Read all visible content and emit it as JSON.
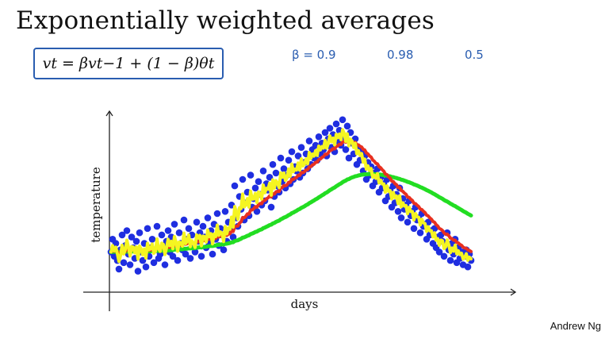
{
  "title": "Exponentially weighted averages",
  "formula": "vt = βvt−1 + (1 − β)θt",
  "annotations": {
    "beta_09": "β = 0.9",
    "beta_098": "0.98",
    "beta_05": "0.5"
  },
  "footer": "Andrew Ng",
  "chart_data": {
    "type": "scatter",
    "title": "",
    "xlabel": "days",
    "ylabel": "temperature",
    "grid": false,
    "series_colors": {
      "points": "#1f2ee0",
      "beta_0.9": "#e83020",
      "beta_0.98": "#22dd22",
      "beta_0.5": "#f5f521"
    },
    "points": {
      "x": [
        0,
        1,
        2,
        3,
        4,
        5,
        6,
        7,
        8,
        9,
        10,
        11,
        12,
        13,
        14,
        15,
        16,
        17,
        18,
        19,
        20,
        21,
        22,
        23,
        24,
        25,
        26,
        27,
        28,
        29,
        30,
        31,
        32,
        33,
        34,
        35,
        36,
        37,
        38,
        39,
        40,
        41,
        42,
        43,
        44,
        45,
        46,
        47,
        48,
        49,
        50,
        51,
        52,
        53,
        54,
        55,
        56,
        57,
        58,
        59,
        60,
        61,
        62,
        63,
        64,
        65,
        66,
        67,
        68,
        69,
        70,
        71,
        72,
        73,
        74,
        75,
        76,
        77,
        78,
        79,
        80,
        81,
        82,
        83,
        84,
        85,
        86,
        87,
        88,
        89,
        90,
        91,
        92,
        93,
        94,
        95,
        96,
        97,
        98,
        99,
        100,
        101,
        102,
        103,
        104,
        105,
        106,
        107,
        108,
        109,
        110,
        111,
        112,
        113,
        114,
        115,
        116,
        117,
        118,
        119,
        120,
        121,
        122,
        123,
        124,
        125,
        126,
        127,
        128,
        129,
        130,
        131,
        132,
        133,
        134,
        135,
        136,
        137,
        138,
        139,
        140,
        141,
        142,
        143,
        144,
        145,
        146,
        147,
        148,
        149,
        150,
        151,
        152,
        153,
        154,
        155,
        156,
        157,
        158,
        159,
        160,
        161,
        162,
        163,
        164,
        165,
        166,
        167,
        168,
        169,
        170,
        171,
        172,
        173,
        174,
        175,
        176,
        177,
        178,
        179,
        180,
        181,
        182,
        183,
        184,
        185,
        186,
        187,
        188,
        189,
        190,
        191,
        192,
        193,
        194,
        195,
        196,
        197,
        198,
        199,
        200,
        201,
        202,
        203,
        204,
        205,
        206,
        207,
        208,
        209,
        210,
        211,
        212,
        213,
        214,
        215,
        216,
        217,
        218,
        219,
        220,
        221,
        222,
        223,
        224,
        225,
        226,
        227
      ],
      "y": [
        14,
        20,
        12,
        18,
        10,
        6,
        15,
        22,
        9,
        17,
        24,
        13,
        8,
        21,
        16,
        11,
        19,
        5,
        23,
        14,
        10,
        18,
        7,
        25,
        12,
        16,
        20,
        9,
        15,
        26,
        11,
        13,
        22,
        17,
        8,
        19,
        24,
        14,
        21,
        12,
        27,
        16,
        10,
        23,
        18,
        15,
        29,
        13,
        20,
        25,
        11,
        22,
        17,
        14,
        28,
        19,
        23,
        12,
        26,
        21,
        16,
        30,
        18,
        24,
        13,
        27,
        20,
        32,
        17,
        25,
        22,
        15,
        33,
        19,
        28,
        24,
        36,
        21,
        45,
        30,
        26,
        40,
        34,
        48,
        29,
        37,
        42,
        31,
        50,
        35,
        39,
        44,
        33,
        47,
        41,
        36,
        52,
        38,
        46,
        43,
        49,
        35,
        55,
        40,
        51,
        45,
        42,
        58,
        47,
        53,
        44,
        50,
        57,
        46,
        61,
        48,
        54,
        52,
        59,
        49,
        63,
        51,
        56,
        60,
        53,
        66,
        55,
        62,
        58,
        64,
        57,
        68,
        60,
        65,
        62,
        70,
        59,
        67,
        72,
        63,
        69,
        61,
        74,
        66,
        71,
        64,
        76,
        68,
        62,
        73,
        58,
        70,
        65,
        60,
        67,
        55,
        63,
        57,
        61,
        52,
        59,
        48,
        56,
        50,
        54,
        45,
        51,
        47,
        53,
        42,
        49,
        44,
        46,
        38,
        48,
        40,
        43,
        35,
        45,
        37,
        41,
        33,
        44,
        30,
        39,
        34,
        36,
        28,
        38,
        31,
        33,
        25,
        35,
        29,
        30,
        23,
        32,
        26,
        27,
        20,
        28,
        22,
        24,
        18,
        25,
        16,
        21,
        14,
        22,
        19,
        12,
        17,
        23,
        15,
        10,
        18,
        13,
        20,
        9,
        16,
        11,
        14,
        8,
        12,
        15,
        7,
        13,
        10
      ],
      "ylim": [
        0,
        80
      ]
    }
  }
}
